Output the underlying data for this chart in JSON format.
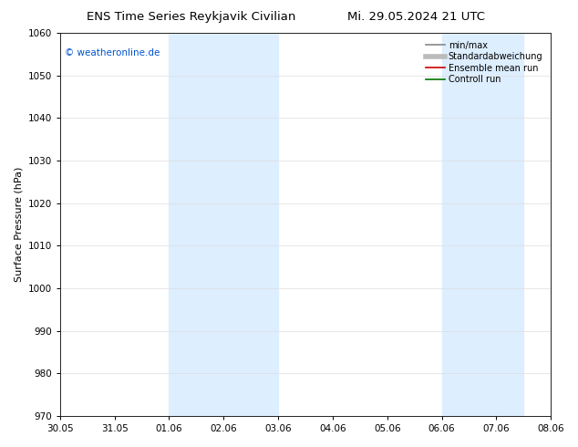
{
  "title_left": "ENS Time Series Reykjavik Civilian",
  "title_right": "Mi. 29.05.2024 21 UTC",
  "ylabel": "Surface Pressure (hPa)",
  "ylim": [
    970,
    1060
  ],
  "yticks": [
    970,
    980,
    990,
    1000,
    1010,
    1020,
    1030,
    1040,
    1050,
    1060
  ],
  "xtick_labels": [
    "30.05",
    "31.05",
    "01.06",
    "02.06",
    "03.06",
    "04.06",
    "05.06",
    "06.06",
    "07.06",
    "08.06"
  ],
  "xtick_positions": [
    0,
    1,
    2,
    3,
    4,
    5,
    6,
    7,
    8,
    9
  ],
  "xlim": [
    0,
    9
  ],
  "shade_bands": [
    {
      "xmin": 2,
      "xmax": 4
    },
    {
      "xmin": 7,
      "xmax": 8.5
    }
  ],
  "shade_color": "#ddeeff",
  "watermark_text": "© weatheronline.de",
  "watermark_color": "#0055cc",
  "legend_items": [
    {
      "label": "min/max",
      "color": "#888888",
      "lw": 1.2,
      "style": "-"
    },
    {
      "label": "Standardabweichung",
      "color": "#bbbbbb",
      "lw": 4,
      "style": "-"
    },
    {
      "label": "Ensemble mean run",
      "color": "#cc0000",
      "lw": 1.2,
      "style": "-"
    },
    {
      "label": "Controll run",
      "color": "#007700",
      "lw": 1.2,
      "style": "-"
    }
  ],
  "bg_color": "#ffffff",
  "title_fontsize": 9.5,
  "axis_fontsize": 8,
  "tick_fontsize": 7.5,
  "legend_fontsize": 7,
  "watermark_fontsize": 7.5
}
